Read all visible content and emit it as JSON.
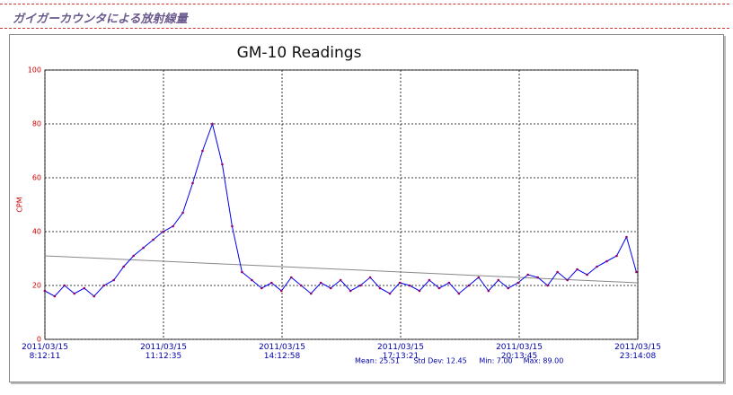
{
  "header": {
    "title": "ガイガーカウンタによる放射線量"
  },
  "chart_data": {
    "type": "line",
    "title": "GM-10 Readings",
    "y_label": "CPM",
    "x": [
      "2011-03-15T08:12",
      "2011-03-15T08:27",
      "2011-03-15T08:42",
      "2011-03-15T08:57",
      "2011-03-15T09:12",
      "2011-03-15T09:27",
      "2011-03-15T09:42",
      "2011-03-15T09:57",
      "2011-03-15T10:12",
      "2011-03-15T10:27",
      "2011-03-15T10:42",
      "2011-03-15T10:57",
      "2011-03-15T11:12",
      "2011-03-15T11:27",
      "2011-03-15T11:42",
      "2011-03-15T11:57",
      "2011-03-15T12:12",
      "2011-03-15T12:27",
      "2011-03-15T12:42",
      "2011-03-15T12:57",
      "2011-03-15T13:12",
      "2011-03-15T13:27",
      "2011-03-15T13:42",
      "2011-03-15T13:57",
      "2011-03-15T14:12",
      "2011-03-15T14:27",
      "2011-03-15T14:42",
      "2011-03-15T14:57",
      "2011-03-15T15:12",
      "2011-03-15T15:27",
      "2011-03-15T15:42",
      "2011-03-15T15:57",
      "2011-03-15T16:12",
      "2011-03-15T16:27",
      "2011-03-15T16:42",
      "2011-03-15T16:57",
      "2011-03-15T17:12",
      "2011-03-15T17:27",
      "2011-03-15T17:42",
      "2011-03-15T17:57",
      "2011-03-15T18:12",
      "2011-03-15T18:27",
      "2011-03-15T18:42",
      "2011-03-15T18:57",
      "2011-03-15T19:12",
      "2011-03-15T19:27",
      "2011-03-15T19:42",
      "2011-03-15T19:57",
      "2011-03-15T20:12",
      "2011-03-15T20:27",
      "2011-03-15T20:42",
      "2011-03-15T20:57",
      "2011-03-15T21:12",
      "2011-03-15T21:27",
      "2011-03-15T21:42",
      "2011-03-15T21:57",
      "2011-03-15T22:12",
      "2011-03-15T22:27",
      "2011-03-15T22:42",
      "2011-03-15T22:57",
      "2011-03-15T23:12"
    ],
    "series": [
      {
        "color": "#0000ee",
        "marker_color": "#990066",
        "values": [
          18,
          16,
          20,
          17,
          19,
          16,
          20,
          22,
          27,
          31,
          34,
          37,
          40,
          42,
          47,
          58,
          70,
          80,
          65,
          42,
          25,
          22,
          19,
          21,
          18,
          23,
          20,
          17,
          21,
          19,
          22,
          18,
          20,
          23,
          19,
          17,
          21,
          20,
          18,
          22,
          19,
          21,
          17,
          20,
          23,
          18,
          22,
          19,
          21,
          24,
          23,
          20,
          25,
          22,
          26,
          24,
          27,
          29,
          31,
          38,
          25
        ]
      }
    ],
    "trend_line": {
      "color": "#888888",
      "x": [
        "2011-03-15T08:12:11",
        "2011-03-15T23:14:08"
      ],
      "values": [
        31,
        21
      ]
    },
    "xlim": [
      "2011-03-15T08:12:11",
      "2011-03-15T23:14:08"
    ],
    "xticks": [
      {
        "value": "2011-03-15T08:12:11",
        "label": "2011/03/15\n8:12:11"
      },
      {
        "value": "2011-03-15T11:12:35",
        "label": "2011/03/15\n11:12:35"
      },
      {
        "value": "2011-03-15T14:12:58",
        "label": "2011/03/15\n14:12:58"
      },
      {
        "value": "2011-03-15T17:13:21",
        "label": "2011/03/15\n17:13:21"
      },
      {
        "value": "2011-03-15T20:13:45",
        "label": "2011/03/15\n20:13:45"
      },
      {
        "value": "2011-03-15T23:14:08",
        "label": "2011/03/15\n23:14:08"
      }
    ],
    "ylim": [
      0,
      100
    ],
    "yticks": [
      0,
      20,
      40,
      60,
      80,
      100
    ],
    "grid": true,
    "stats": [
      "Mean: 25.51",
      "Std Dev: 12.45",
      "Min: 7.00",
      "Max: 89.00"
    ]
  }
}
